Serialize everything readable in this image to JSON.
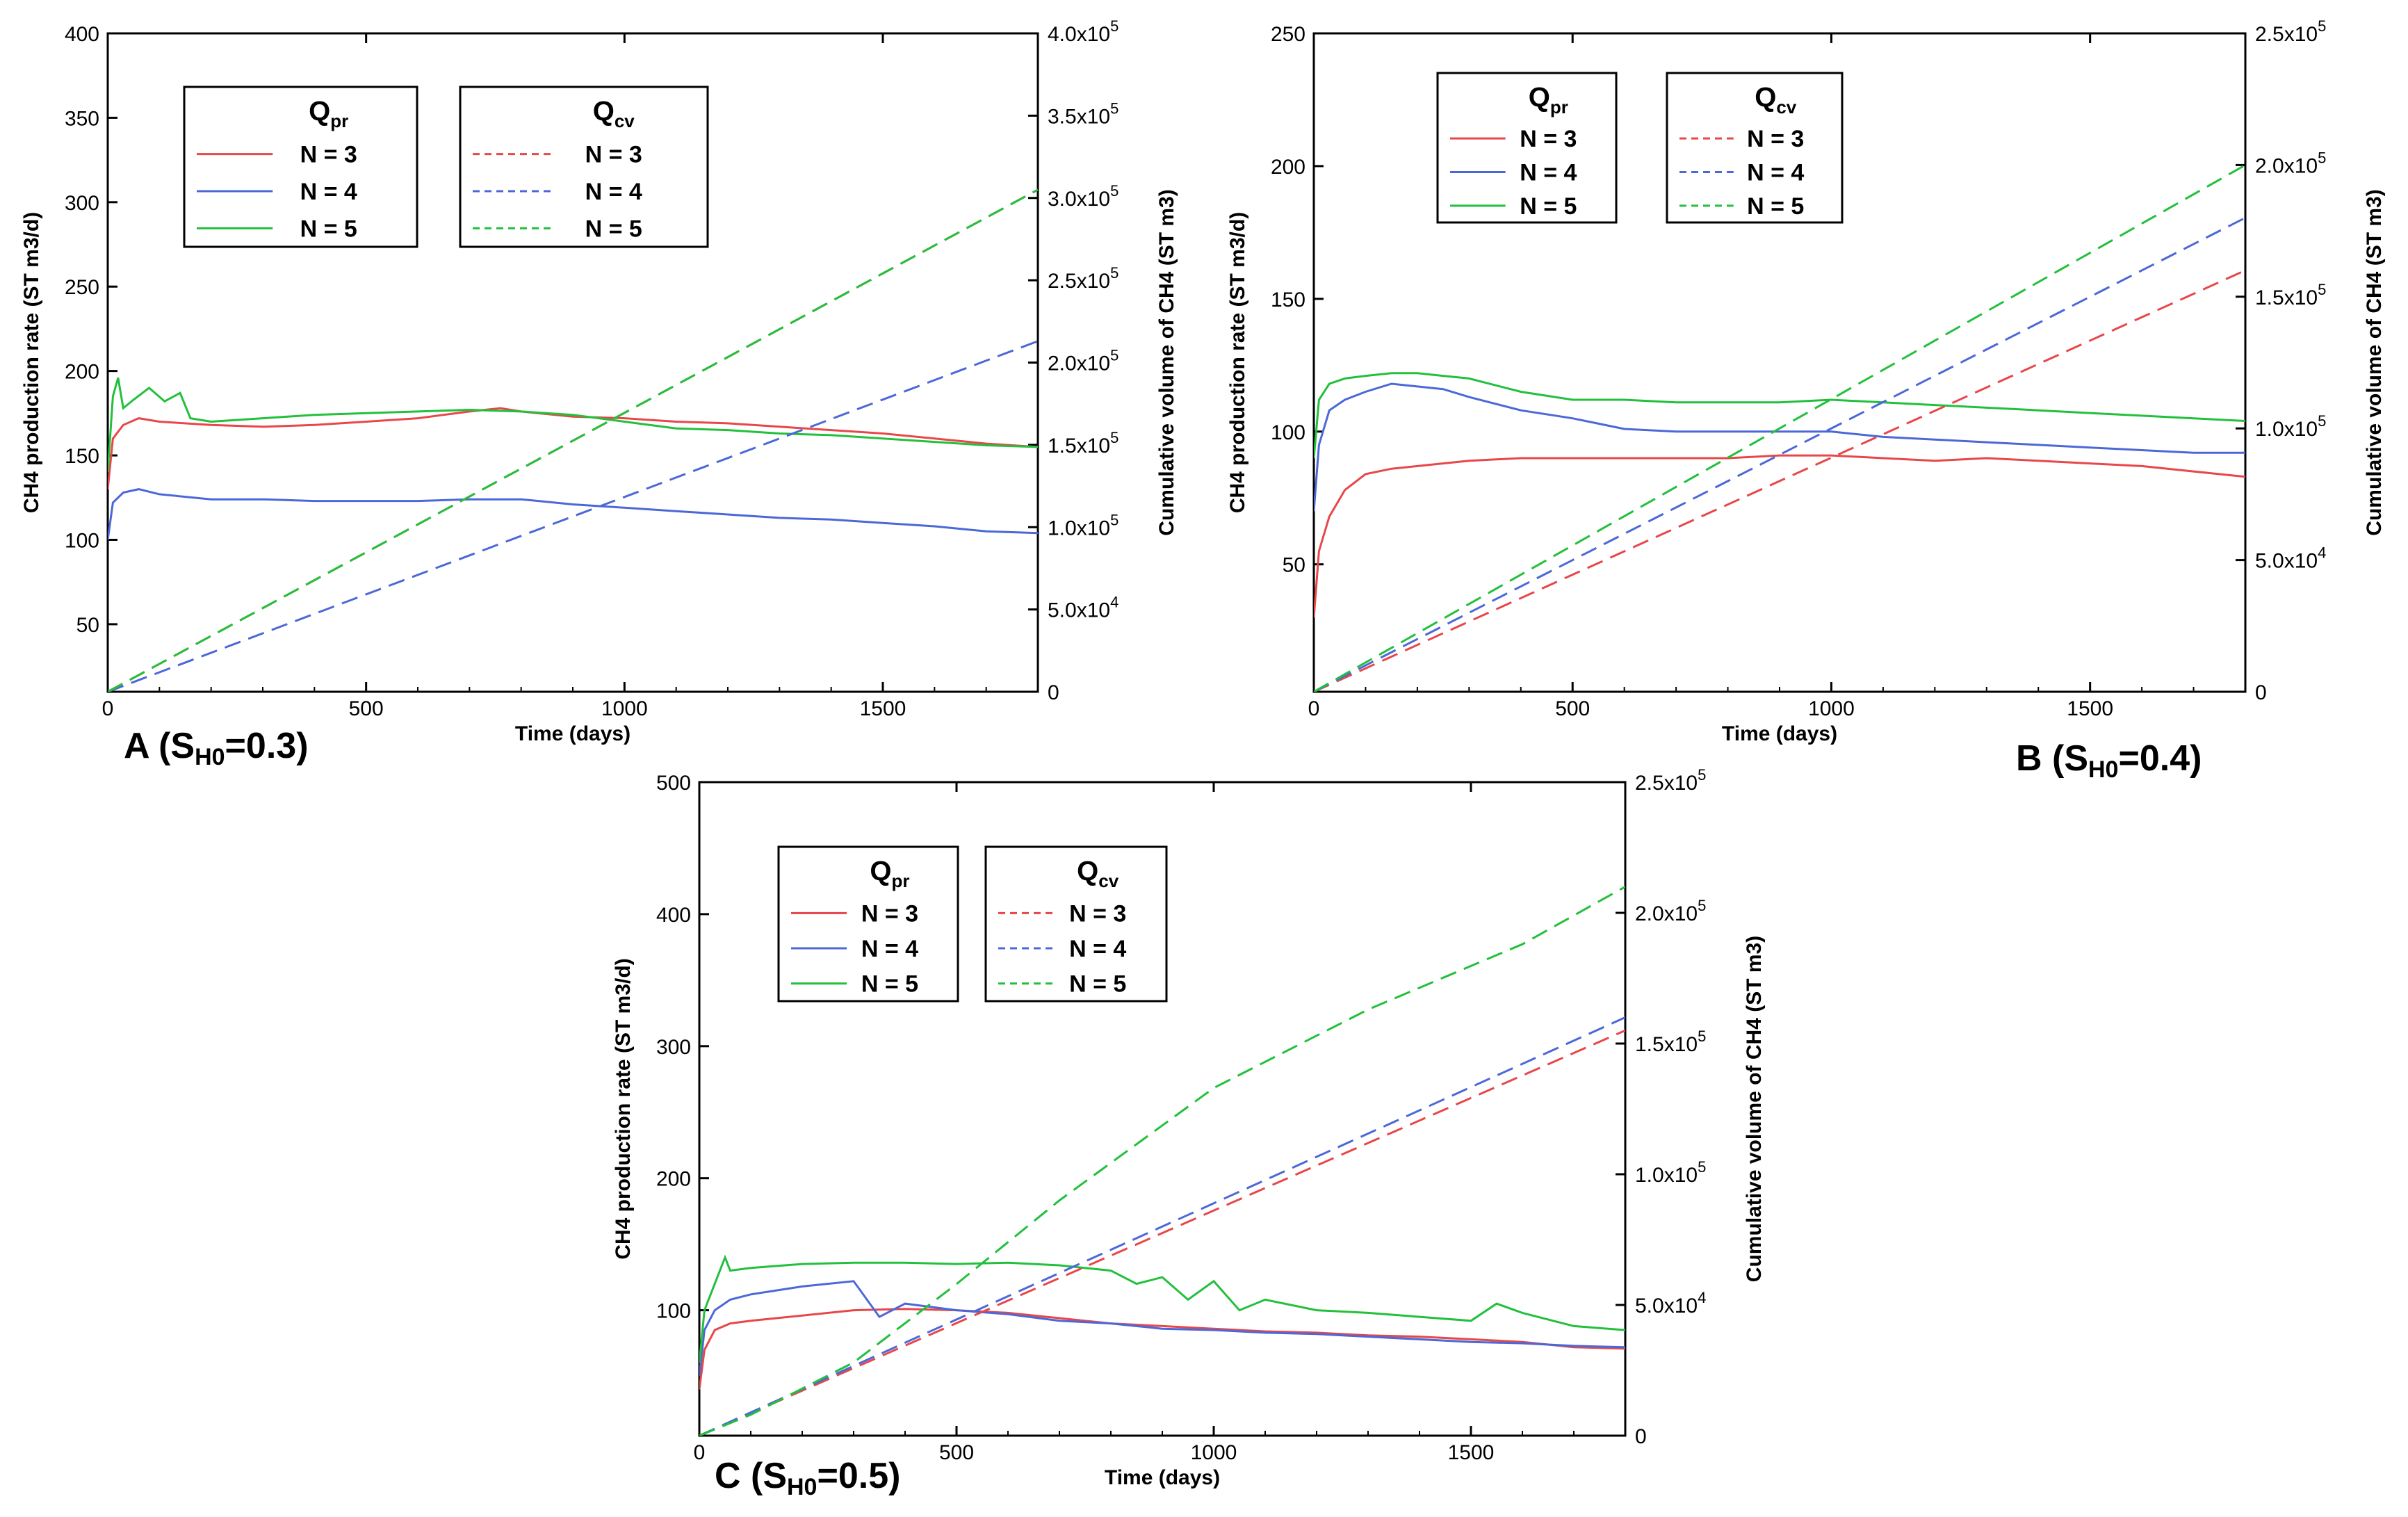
{
  "figure": {
    "title": ""
  },
  "colors": {
    "n3": "#e8474a",
    "n4": "#4c68d8",
    "n5": "#22c03c"
  },
  "chart_data": [
    {
      "id": "A",
      "type": "line",
      "panel_label": {
        "main": "A (S",
        "sub": "H0",
        "rest": "=0.3)"
      },
      "title": "",
      "xlabel": "Time (days)",
      "ylabel": "CH4 production rate (ST m3/d)",
      "y2label": "Cumulative volume of CH4 (ST m3)",
      "xlim": [
        0,
        1800
      ],
      "ylim": [
        10,
        400
      ],
      "y2lim": [
        0,
        400000
      ],
      "xticks": [
        0,
        500,
        1000,
        1500
      ],
      "xtick_labels": [
        "0",
        "500",
        "1000",
        "1500"
      ],
      "yticks": [
        50,
        100,
        150,
        200,
        250,
        300,
        350,
        400
      ],
      "ytick_labels": [
        "50",
        "100",
        "150",
        "200",
        "250",
        "300",
        "350",
        "400"
      ],
      "y2ticks": [
        0,
        50000,
        100000,
        150000,
        200000,
        250000,
        300000,
        350000,
        400000
      ],
      "y2tick_labels": [
        {
          "base": "0",
          "exp": ""
        },
        {
          "base": "5.0x10",
          "exp": "4"
        },
        {
          "base": "1.0x10",
          "exp": "5"
        },
        {
          "base": "1.5x10",
          "exp": "5"
        },
        {
          "base": "2.0x10",
          "exp": "5"
        },
        {
          "base": "2.5x10",
          "exp": "5"
        },
        {
          "base": "3.0x10",
          "exp": "5"
        },
        {
          "base": "3.5x10",
          "exp": "5"
        },
        {
          "base": "4.0x10",
          "exp": "5"
        }
      ],
      "legend_qpr": {
        "title": "Q",
        "sub": "pr",
        "entries": [
          "N = 3",
          "N = 4",
          "N = 5"
        ]
      },
      "legend_qcv": {
        "title": "Q",
        "sub": "cv",
        "entries": [
          "N = 3",
          "N = 4",
          "N = 5"
        ]
      },
      "series": [
        {
          "name": "Qpr N = 3",
          "axis": "left",
          "style": "solid",
          "color": "#e8474a",
          "x": [
            0,
            10,
            30,
            60,
            100,
            200,
            300,
            400,
            500,
            600,
            700,
            760,
            800,
            900,
            1000,
            1100,
            1200,
            1300,
            1400,
            1500,
            1600,
            1700,
            1800
          ],
          "y": [
            130,
            160,
            168,
            172,
            170,
            168,
            167,
            168,
            170,
            172,
            176,
            178,
            176,
            173,
            172,
            170,
            169,
            167,
            165,
            163,
            160,
            157,
            155
          ]
        },
        {
          "name": "Qpr N = 4",
          "axis": "left",
          "style": "solid",
          "color": "#4c68d8",
          "x": [
            0,
            10,
            30,
            60,
            100,
            200,
            300,
            400,
            500,
            600,
            700,
            800,
            900,
            1000,
            1100,
            1200,
            1300,
            1400,
            1500,
            1600,
            1700,
            1800
          ],
          "y": [
            100,
            122,
            128,
            130,
            127,
            124,
            124,
            123,
            123,
            123,
            124,
            124,
            121,
            119,
            117,
            115,
            113,
            112,
            110,
            108,
            105,
            104
          ]
        },
        {
          "name": "Qpr N = 5",
          "axis": "left",
          "style": "solid",
          "color": "#22c03c",
          "x": [
            0,
            10,
            20,
            30,
            50,
            80,
            110,
            140,
            160,
            200,
            300,
            400,
            500,
            600,
            700,
            800,
            900,
            1000,
            1100,
            1200,
            1300,
            1400,
            1500,
            1600,
            1700,
            1800
          ],
          "y": [
            140,
            185,
            196,
            178,
            183,
            190,
            182,
            187,
            172,
            170,
            172,
            174,
            175,
            176,
            177,
            176,
            174,
            170,
            166,
            165,
            163,
            162,
            160,
            158,
            156,
            155
          ]
        },
        {
          "name": "Qcv N = 3",
          "axis": "right",
          "style": "dashed",
          "color": "#e8474a",
          "x": [
            0,
            1800
          ],
          "y": [
            0,
            305000
          ]
        },
        {
          "name": "Qcv N = 4",
          "axis": "right",
          "style": "dashed",
          "color": "#4c68d8",
          "x": [
            0,
            1800
          ],
          "y": [
            0,
            213000
          ]
        },
        {
          "name": "Qcv N = 5",
          "axis": "right",
          "style": "dashed",
          "color": "#22c03c",
          "x": [
            0,
            1800
          ],
          "y": [
            0,
            305000
          ]
        }
      ]
    },
    {
      "id": "B",
      "type": "line",
      "panel_label": {
        "main": "B (S",
        "sub": "H0",
        "rest": "=0.4)"
      },
      "title": "",
      "xlabel": "Time (days)",
      "ylabel": "CH4 production rate (ST m3/d)",
      "y2label": "Cumulative volume of CH4 (ST m3)",
      "xlim": [
        0,
        1800
      ],
      "ylim": [
        2,
        250
      ],
      "y2lim": [
        0,
        250000
      ],
      "xticks": [
        0,
        500,
        1000,
        1500
      ],
      "xtick_labels": [
        "0",
        "500",
        "1000",
        "1500"
      ],
      "yticks": [
        50,
        100,
        150,
        200,
        250
      ],
      "ytick_labels": [
        "50",
        "100",
        "150",
        "200",
        "250"
      ],
      "y2ticks": [
        0,
        50000,
        100000,
        150000,
        200000,
        250000
      ],
      "y2tick_labels": [
        {
          "base": "0",
          "exp": ""
        },
        {
          "base": "5.0x10",
          "exp": "4"
        },
        {
          "base": "1.0x10",
          "exp": "5"
        },
        {
          "base": "1.5x10",
          "exp": "5"
        },
        {
          "base": "2.0x10",
          "exp": "5"
        },
        {
          "base": "2.5x10",
          "exp": "5"
        }
      ],
      "legend_qpr": {
        "title": "Q",
        "sub": "pr",
        "entries": [
          "N = 3",
          "N = 4",
          "N = 5"
        ]
      },
      "legend_qcv": {
        "title": "Q",
        "sub": "cv",
        "entries": [
          "N = 3",
          "N = 4",
          "N = 5"
        ]
      },
      "series": [
        {
          "name": "Qpr N = 3",
          "axis": "left",
          "style": "solid",
          "color": "#e8474a",
          "x": [
            0,
            10,
            30,
            60,
            100,
            150,
            200,
            300,
            400,
            500,
            600,
            700,
            800,
            900,
            1000,
            1100,
            1200,
            1300,
            1400,
            1500,
            1600,
            1700,
            1800
          ],
          "y": [
            30,
            55,
            68,
            78,
            84,
            86,
            87,
            89,
            90,
            90,
            90,
            90,
            90,
            91,
            91,
            90,
            89,
            90,
            89,
            88,
            87,
            85,
            83
          ]
        },
        {
          "name": "Qpr N = 4",
          "axis": "left",
          "style": "solid",
          "color": "#4c68d8",
          "x": [
            0,
            10,
            30,
            60,
            100,
            150,
            200,
            250,
            300,
            400,
            500,
            600,
            700,
            800,
            900,
            1000,
            1100,
            1200,
            1300,
            1400,
            1500,
            1600,
            1700,
            1800
          ],
          "y": [
            70,
            95,
            108,
            112,
            115,
            118,
            117,
            116,
            113,
            108,
            105,
            101,
            100,
            100,
            100,
            100,
            98,
            97,
            96,
            95,
            94,
            93,
            92,
            92
          ]
        },
        {
          "name": "Qpr N = 5",
          "axis": "left",
          "style": "solid",
          "color": "#22c03c",
          "x": [
            0,
            10,
            30,
            60,
            100,
            150,
            200,
            250,
            300,
            400,
            500,
            600,
            700,
            800,
            900,
            1000,
            1100,
            1200,
            1300,
            1400,
            1500,
            1600,
            1700,
            1800
          ],
          "y": [
            90,
            112,
            118,
            120,
            121,
            122,
            122,
            121,
            120,
            115,
            112,
            112,
            111,
            111,
            111,
            112,
            111,
            110,
            109,
            108,
            107,
            106,
            105,
            104
          ]
        },
        {
          "name": "Qcv N = 3",
          "axis": "right",
          "style": "dashed",
          "color": "#e8474a",
          "x": [
            0,
            1800
          ],
          "y": [
            0,
            160000
          ]
        },
        {
          "name": "Qcv N = 4",
          "axis": "right",
          "style": "dashed",
          "color": "#4c68d8",
          "x": [
            0,
            1800
          ],
          "y": [
            0,
            180000
          ]
        },
        {
          "name": "Qcv N = 5",
          "axis": "right",
          "style": "dashed",
          "color": "#22c03c",
          "x": [
            0,
            1800
          ],
          "y": [
            0,
            200000
          ]
        }
      ]
    },
    {
      "id": "C",
      "type": "line",
      "panel_label": {
        "main": "C (S",
        "sub": "H0",
        "rest": "=0.5)"
      },
      "title": "",
      "xlabel": "Time (days)",
      "ylabel": "CH4 production rate (ST m3/d)",
      "y2label": "Cumulative volume of CH4 (ST m3)",
      "xlim": [
        0,
        1800
      ],
      "ylim": [
        5,
        500
      ],
      "y2lim": [
        0,
        250000
      ],
      "xticks": [
        0,
        500,
        1000,
        1500
      ],
      "xtick_labels": [
        "0",
        "500",
        "1000",
        "1500"
      ],
      "yticks": [
        100,
        200,
        300,
        400,
        500
      ],
      "ytick_labels": [
        "100",
        "200",
        "300",
        "400",
        "500"
      ],
      "y2ticks": [
        0,
        50000,
        100000,
        150000,
        200000,
        250000
      ],
      "y2tick_labels": [
        {
          "base": "0",
          "exp": ""
        },
        {
          "base": "5.0x10",
          "exp": "4"
        },
        {
          "base": "1.0x10",
          "exp": "5"
        },
        {
          "base": "1.5x10",
          "exp": "5"
        },
        {
          "base": "2.0x10",
          "exp": "5"
        },
        {
          "base": "2.5x10",
          "exp": "5"
        }
      ],
      "legend_qpr": {
        "title": "Q",
        "sub": "pr",
        "entries": [
          "N = 3",
          "N = 4",
          "N = 5"
        ]
      },
      "legend_qcv": {
        "title": "Q",
        "sub": "cv",
        "entries": [
          "N = 3",
          "N = 4",
          "N = 5"
        ]
      },
      "series": [
        {
          "name": "Qpr N = 3",
          "axis": "left",
          "style": "solid",
          "color": "#e8474a",
          "x": [
            0,
            10,
            30,
            60,
            100,
            200,
            300,
            400,
            500,
            600,
            700,
            800,
            900,
            1000,
            1100,
            1200,
            1300,
            1400,
            1500,
            1600,
            1700,
            1800
          ],
          "y": [
            40,
            70,
            85,
            90,
            92,
            96,
            100,
            101,
            100,
            98,
            94,
            90,
            88,
            86,
            84,
            83,
            81,
            80,
            78,
            76,
            72,
            71
          ]
        },
        {
          "name": "Qpr N = 4",
          "axis": "left",
          "style": "solid",
          "color": "#4c68d8",
          "x": [
            0,
            10,
            30,
            60,
            100,
            200,
            300,
            350,
            400,
            500,
            600,
            700,
            800,
            900,
            1000,
            1100,
            1200,
            1300,
            1400,
            1500,
            1600,
            1700,
            1800
          ],
          "y": [
            50,
            85,
            100,
            108,
            112,
            118,
            122,
            95,
            105,
            100,
            97,
            92,
            90,
            86,
            85,
            83,
            82,
            80,
            78,
            76,
            75,
            73,
            72
          ]
        },
        {
          "name": "Qpr N = 5",
          "axis": "left",
          "style": "solid",
          "color": "#22c03c",
          "x": [
            0,
            10,
            30,
            50,
            60,
            100,
            200,
            300,
            400,
            500,
            600,
            700,
            800,
            850,
            900,
            950,
            1000,
            1050,
            1100,
            1200,
            1300,
            1400,
            1500,
            1550,
            1600,
            1700,
            1800
          ],
          "y": [
            60,
            100,
            120,
            140,
            130,
            132,
            135,
            136,
            136,
            135,
            136,
            134,
            130,
            120,
            125,
            108,
            122,
            100,
            108,
            100,
            98,
            95,
            92,
            105,
            98,
            88,
            85
          ]
        },
        {
          "name": "Qcv N = 3",
          "axis": "right",
          "style": "dashed",
          "color": "#e8474a",
          "x": [
            0,
            1800
          ],
          "y": [
            0,
            155000
          ]
        },
        {
          "name": "Qcv N = 4",
          "axis": "right",
          "style": "dashed",
          "color": "#4c68d8",
          "x": [
            0,
            1800
          ],
          "y": [
            0,
            160000
          ]
        },
        {
          "name": "Qcv N = 5",
          "axis": "right",
          "style": "dashed",
          "color": "#22c03c",
          "x": [
            0,
            100,
            300,
            500,
            700,
            1000,
            1300,
            1600,
            1800
          ],
          "y": [
            0,
            8000,
            28000,
            58000,
            90000,
            133000,
            163000,
            188000,
            210000
          ]
        }
      ]
    }
  ]
}
